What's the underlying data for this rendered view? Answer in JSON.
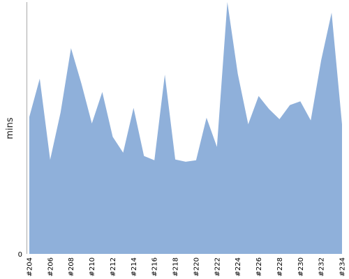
{
  "chart_data": {
    "type": "area",
    "ylabel": "mins",
    "xlabel": "",
    "title": "",
    "y_tick_labels": [
      "0"
    ],
    "ylim": [
      0,
      100
    ],
    "grid": false,
    "legend": "none",
    "fill_color": "#8fb0da",
    "axis_color": "#a9a9a9",
    "categories": [
      "#204",
      "#205",
      "#206",
      "#207",
      "#208",
      "#209",
      "#210",
      "#211",
      "#212",
      "#213",
      "#214",
      "#215",
      "#216",
      "#217",
      "#218",
      "#219",
      "#220",
      "#221",
      "#222",
      "#223",
      "#224",
      "#225",
      "#226",
      "#227",
      "#228",
      "#229",
      "#230",
      "#231",
      "#232",
      "#233",
      "#234"
    ],
    "labeled_categories": [
      "#204",
      "#206",
      "#208",
      "#210",
      "#212",
      "#214",
      "#216",
      "#218",
      "#220",
      "#222",
      "#224",
      "#226",
      "#228",
      "#230",
      "#232",
      "#234"
    ],
    "values": [
      54.4,
      69.6,
      37.4,
      56.2,
      81.7,
      67.6,
      51.8,
      64.3,
      46.5,
      40.2,
      58.0,
      38.9,
      37.2,
      71.2,
      37.5,
      36.6,
      37.2,
      54.1,
      42.5,
      100.0,
      71.5,
      51.5,
      62.7,
      57.5,
      53.5,
      59.1,
      60.6,
      53.0,
      76.9,
      95.8,
      51.5
    ]
  }
}
